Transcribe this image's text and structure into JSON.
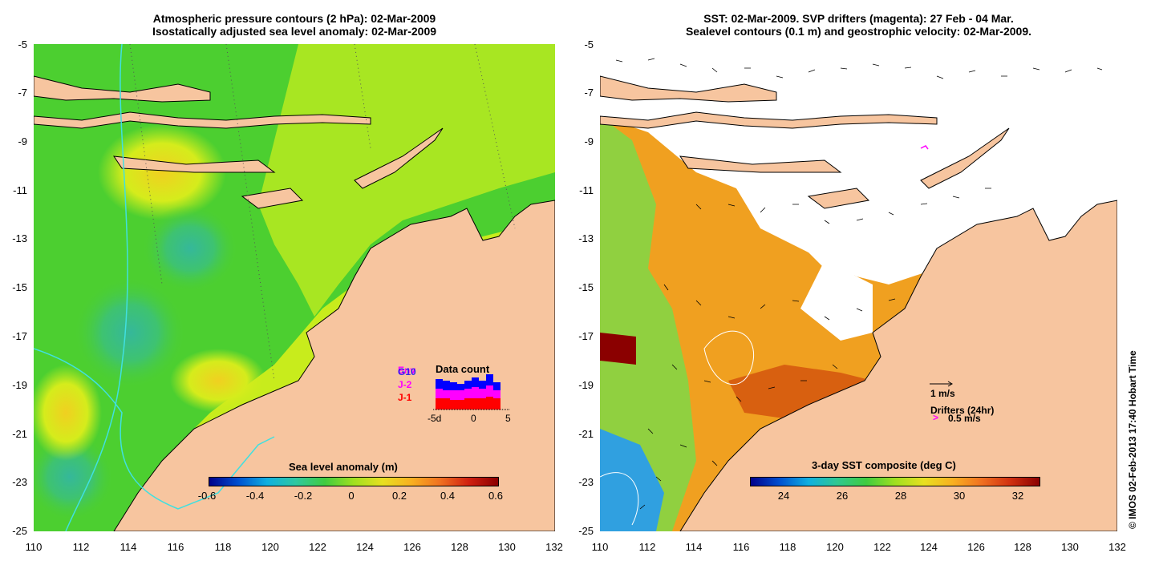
{
  "left_panel": {
    "title_line1": "Atmospheric pressure contours (2 hPa): 02-Mar-2009",
    "title_line2": "Isostatically adjusted sea level anomaly: 02-Mar-2009",
    "colorbar": {
      "title": "Sea level anomaly (m)",
      "ticks": [
        "-0.6",
        "-0.4",
        "-0.2",
        "0",
        "0.2",
        "0.4",
        "0.6"
      ]
    },
    "data_count": {
      "title": "Data count",
      "sat_labels": [
        "Env",
        "G10",
        "J-2",
        "J-1"
      ],
      "x_ticks": [
        "-5d",
        "0",
        "5"
      ],
      "colors": {
        "env": "#ff00ff",
        "g10": "#0000ff",
        "j2": "#ff00ff",
        "j1": "#ff0000"
      }
    }
  },
  "right_panel": {
    "title_line1": "SST: 02-Mar-2009. SVP drifters (magenta): 27 Feb - 04 Mar.",
    "title_line2": "Sealevel contours (0.1 m) and geostrophic velocity: 02-Mar-2009.",
    "colorbar": {
      "title": "3-day SST composite (deg C)",
      "ticks": [
        "24",
        "26",
        "28",
        "30",
        "32"
      ]
    },
    "velocity_scale_label": "1 m/s",
    "drifters_label": "Drifters (24hr)",
    "drifter_scale_label": "0.5 m/s"
  },
  "axes": {
    "x_ticks": [
      "110",
      "112",
      "114",
      "116",
      "118",
      "120",
      "122",
      "124",
      "126",
      "128",
      "130",
      "132"
    ],
    "y_ticks": [
      "-5",
      "-7",
      "-9",
      "-11",
      "-13",
      "-15",
      "-17",
      "-19",
      "-21",
      "-23",
      "-25"
    ],
    "lon_range": [
      110,
      132
    ],
    "lat_range": [
      -25,
      -5
    ]
  },
  "copyright": "© IMOS 02-Feb-2013 17:40 Hobart Time",
  "colors": {
    "land": "#f7c59f",
    "coast": "#000000",
    "sla_green": "#4ccf30",
    "sla_yellow": "#c8ec1c",
    "sst_orange": "#f0a020"
  }
}
